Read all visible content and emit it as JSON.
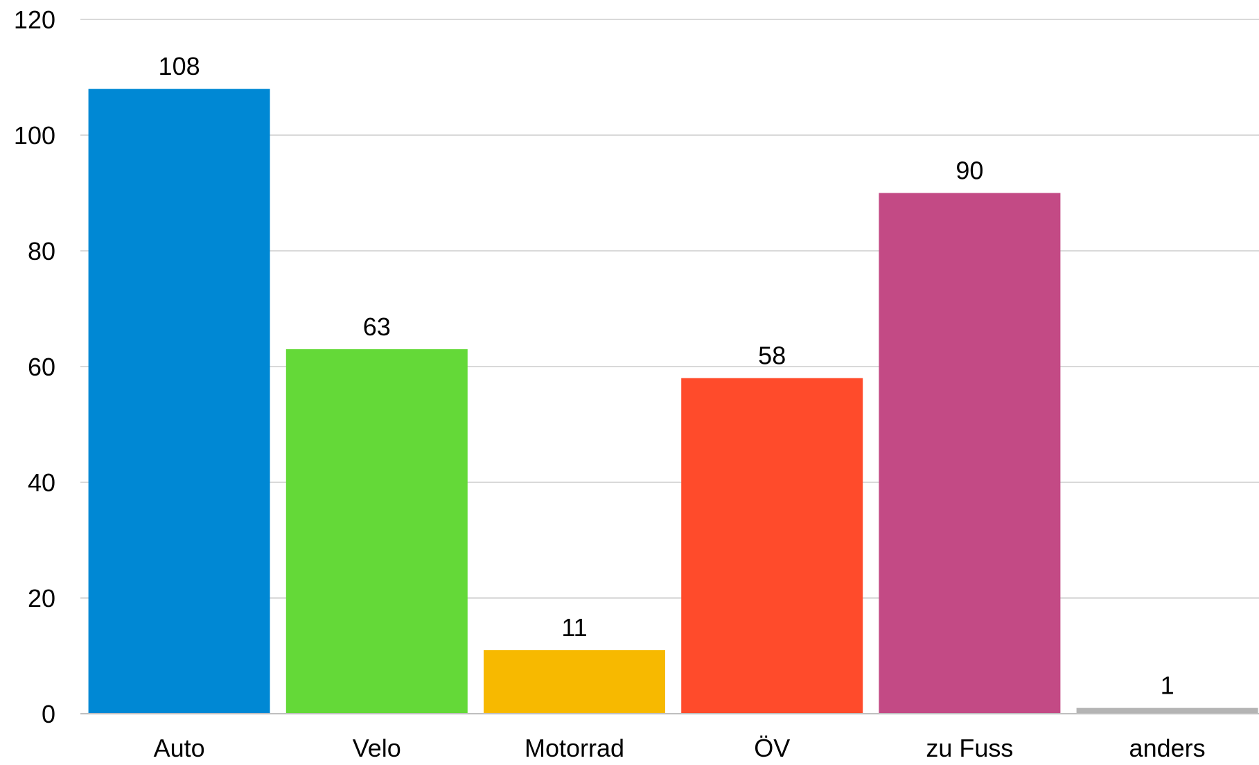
{
  "chart_data": {
    "type": "bar",
    "categories": [
      "Auto",
      "Velo",
      "Motorrad",
      "ÖV",
      "zu Fuss",
      "anders"
    ],
    "values": [
      108,
      63,
      11,
      58,
      90,
      1
    ],
    "value_labels": [
      "108",
      "63",
      "11",
      "58",
      "90",
      "1"
    ],
    "colors": [
      "#0088d4",
      "#64d938",
      "#f7b900",
      "#ff4b2b",
      "#c34a85",
      "#b4b4b4"
    ],
    "ylim": [
      0,
      120
    ],
    "yticks": [
      0,
      20,
      40,
      60,
      80,
      100,
      120
    ],
    "ytick_labels": [
      "0",
      "20",
      "40",
      "60",
      "80",
      "100",
      "120"
    ],
    "grid": true,
    "legend": "none"
  }
}
